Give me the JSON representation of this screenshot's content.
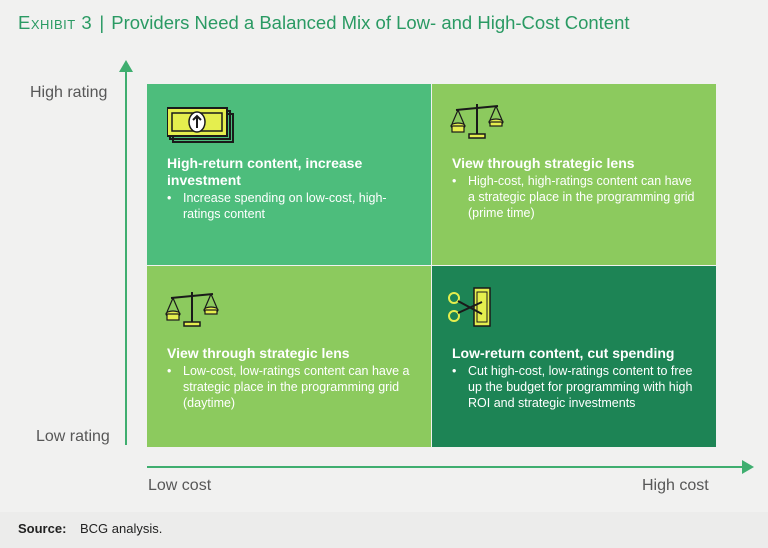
{
  "title": {
    "exhibit": "Exhibit 3",
    "separator": "|",
    "text": "Providers Need a Balanced Mix of Low- and High-Cost Content"
  },
  "axes": {
    "y_high": "High rating",
    "y_low": "Low rating",
    "x_low": "Low cost",
    "x_high": "High cost"
  },
  "quadrants": {
    "top_left": {
      "heading": "High-return content, increase investment",
      "bullet": "Increase spending on low-cost, high-ratings content",
      "icon": "money-up-icon"
    },
    "top_right": {
      "heading": "View through strategic lens",
      "bullet": "High-cost, high-ratings content can have a strategic place in the programming grid (prime time)",
      "icon": "balance-scale-icon"
    },
    "bottom_left": {
      "heading": "View through strategic lens",
      "bullet": "Low-cost, low-ratings content can have a strategic place in the programming grid (daytime)",
      "icon": "balance-scale-icon"
    },
    "bottom_right": {
      "heading": "Low-return content, cut spending",
      "bullet": "Cut high-cost, low-ratings content to free up the budget for programming with high ROI and strategic investments",
      "icon": "scissors-money-icon"
    }
  },
  "source": {
    "label": "Source:",
    "text": "BCG analysis."
  },
  "colors": {
    "accent": "#2a9a63",
    "quad_dark": "#1d8455",
    "quad_mid": "#4dbd7c",
    "quad_light": "#8cca5e"
  }
}
